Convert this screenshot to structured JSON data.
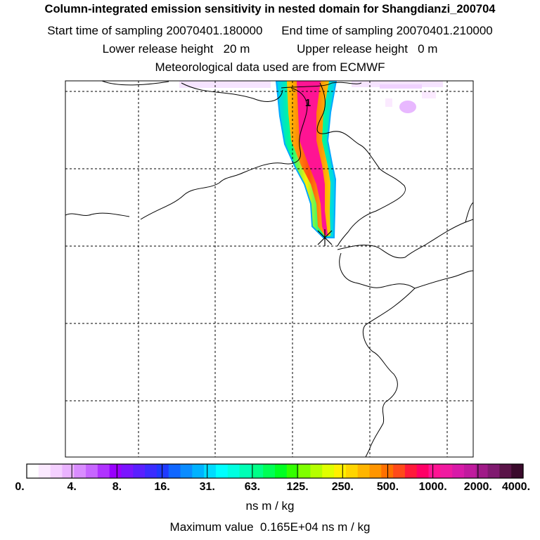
{
  "titles": {
    "main": "Column-integrated emission sensitivity in nested domain for Shangdianzi_200704",
    "start_label": "Start time of sampling",
    "start_value": "20070401.180000",
    "end_label": "End time of sampling",
    "end_value": "20070401.210000",
    "lower_label": "Lower release height",
    "lower_value": "20 m",
    "upper_label": "Upper release height",
    "upper_value": "0 m",
    "met": "Meteorological data used are from ECMWF"
  },
  "map": {
    "plume_label": "1",
    "release_marker": "x-marker-icon"
  },
  "colorbar": {
    "labels": [
      "0.",
      "4.",
      "8.",
      "16.",
      "31.",
      "63.",
      "125.",
      "250.",
      "500.",
      "1000.",
      "2000.",
      "4000."
    ],
    "colors": [
      "#ffffff",
      "#fbe9ff",
      "#f4d0ff",
      "#eab3ff",
      "#d98cff",
      "#c766ff",
      "#b033ff",
      "#9900ff",
      "#7a14ff",
      "#5a1fff",
      "#3b2cff",
      "#1f3aff",
      "#1066ff",
      "#0a8cff",
      "#00b2ff",
      "#00dcff",
      "#00ffff",
      "#00ffe0",
      "#00ffb5",
      "#00ff88",
      "#00ff55",
      "#00ff22",
      "#33ff00",
      "#7fff00",
      "#b5ff00",
      "#e0ff00",
      "#fff000",
      "#ffd500",
      "#ffb500",
      "#ff9500",
      "#ff7000",
      "#ff4a1a",
      "#ff1a3b",
      "#ff0066",
      "#ff1493",
      "#f01aa0",
      "#d81aa8",
      "#c01a9e",
      "#a01a88",
      "#801a70",
      "#5a1448",
      "#3a0a2c"
    ],
    "units": "ns m / kg"
  },
  "max_value": {
    "label": "Maximum value",
    "value": "0.165E+04",
    "units": "ns m / kg"
  }
}
